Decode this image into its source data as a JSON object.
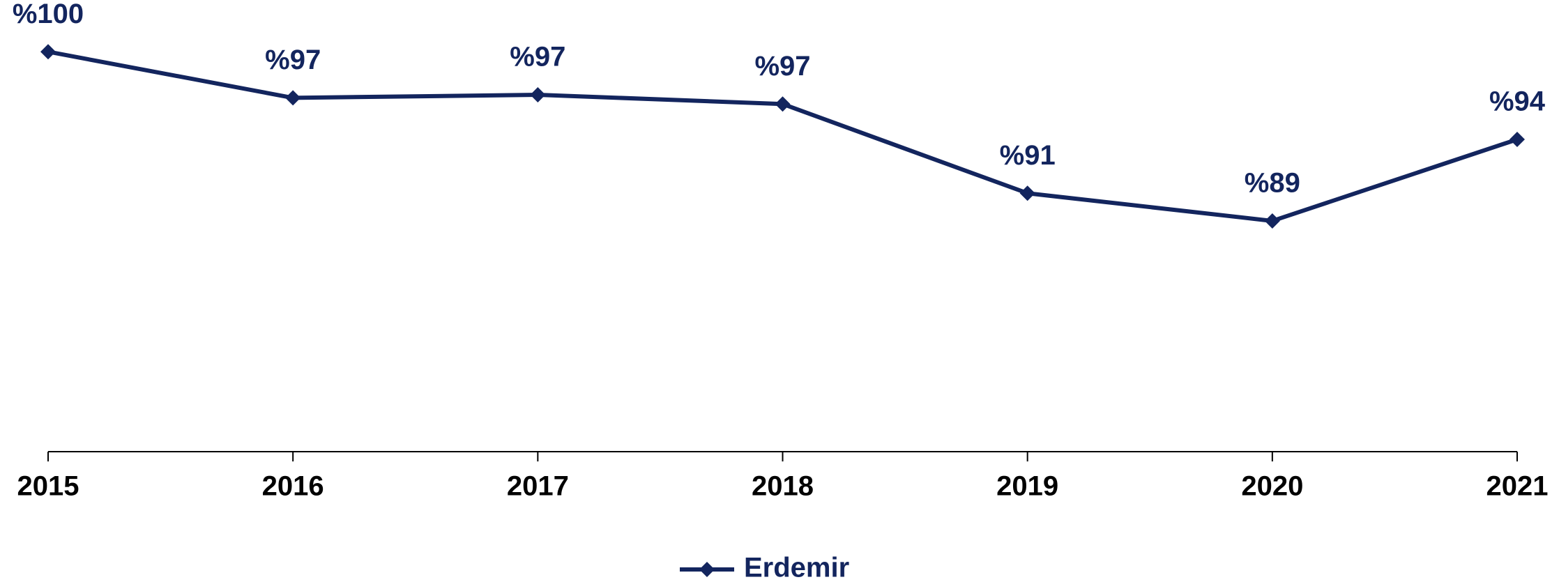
{
  "chart_data": {
    "type": "line",
    "categories": [
      "2015",
      "2016",
      "2017",
      "2018",
      "2019",
      "2020",
      "2021"
    ],
    "series": [
      {
        "name": "Erdemir",
        "color": "#13255e",
        "values": [
          100,
          97,
          97.2,
          96.6,
          90.8,
          89,
          94.3
        ],
        "value_labels": [
          "%100",
          "%97",
          "%97",
          "%97",
          "%91",
          "%89",
          "%94"
        ]
      }
    ],
    "ylim": [
      74,
      103
    ],
    "legend": "bottom"
  }
}
